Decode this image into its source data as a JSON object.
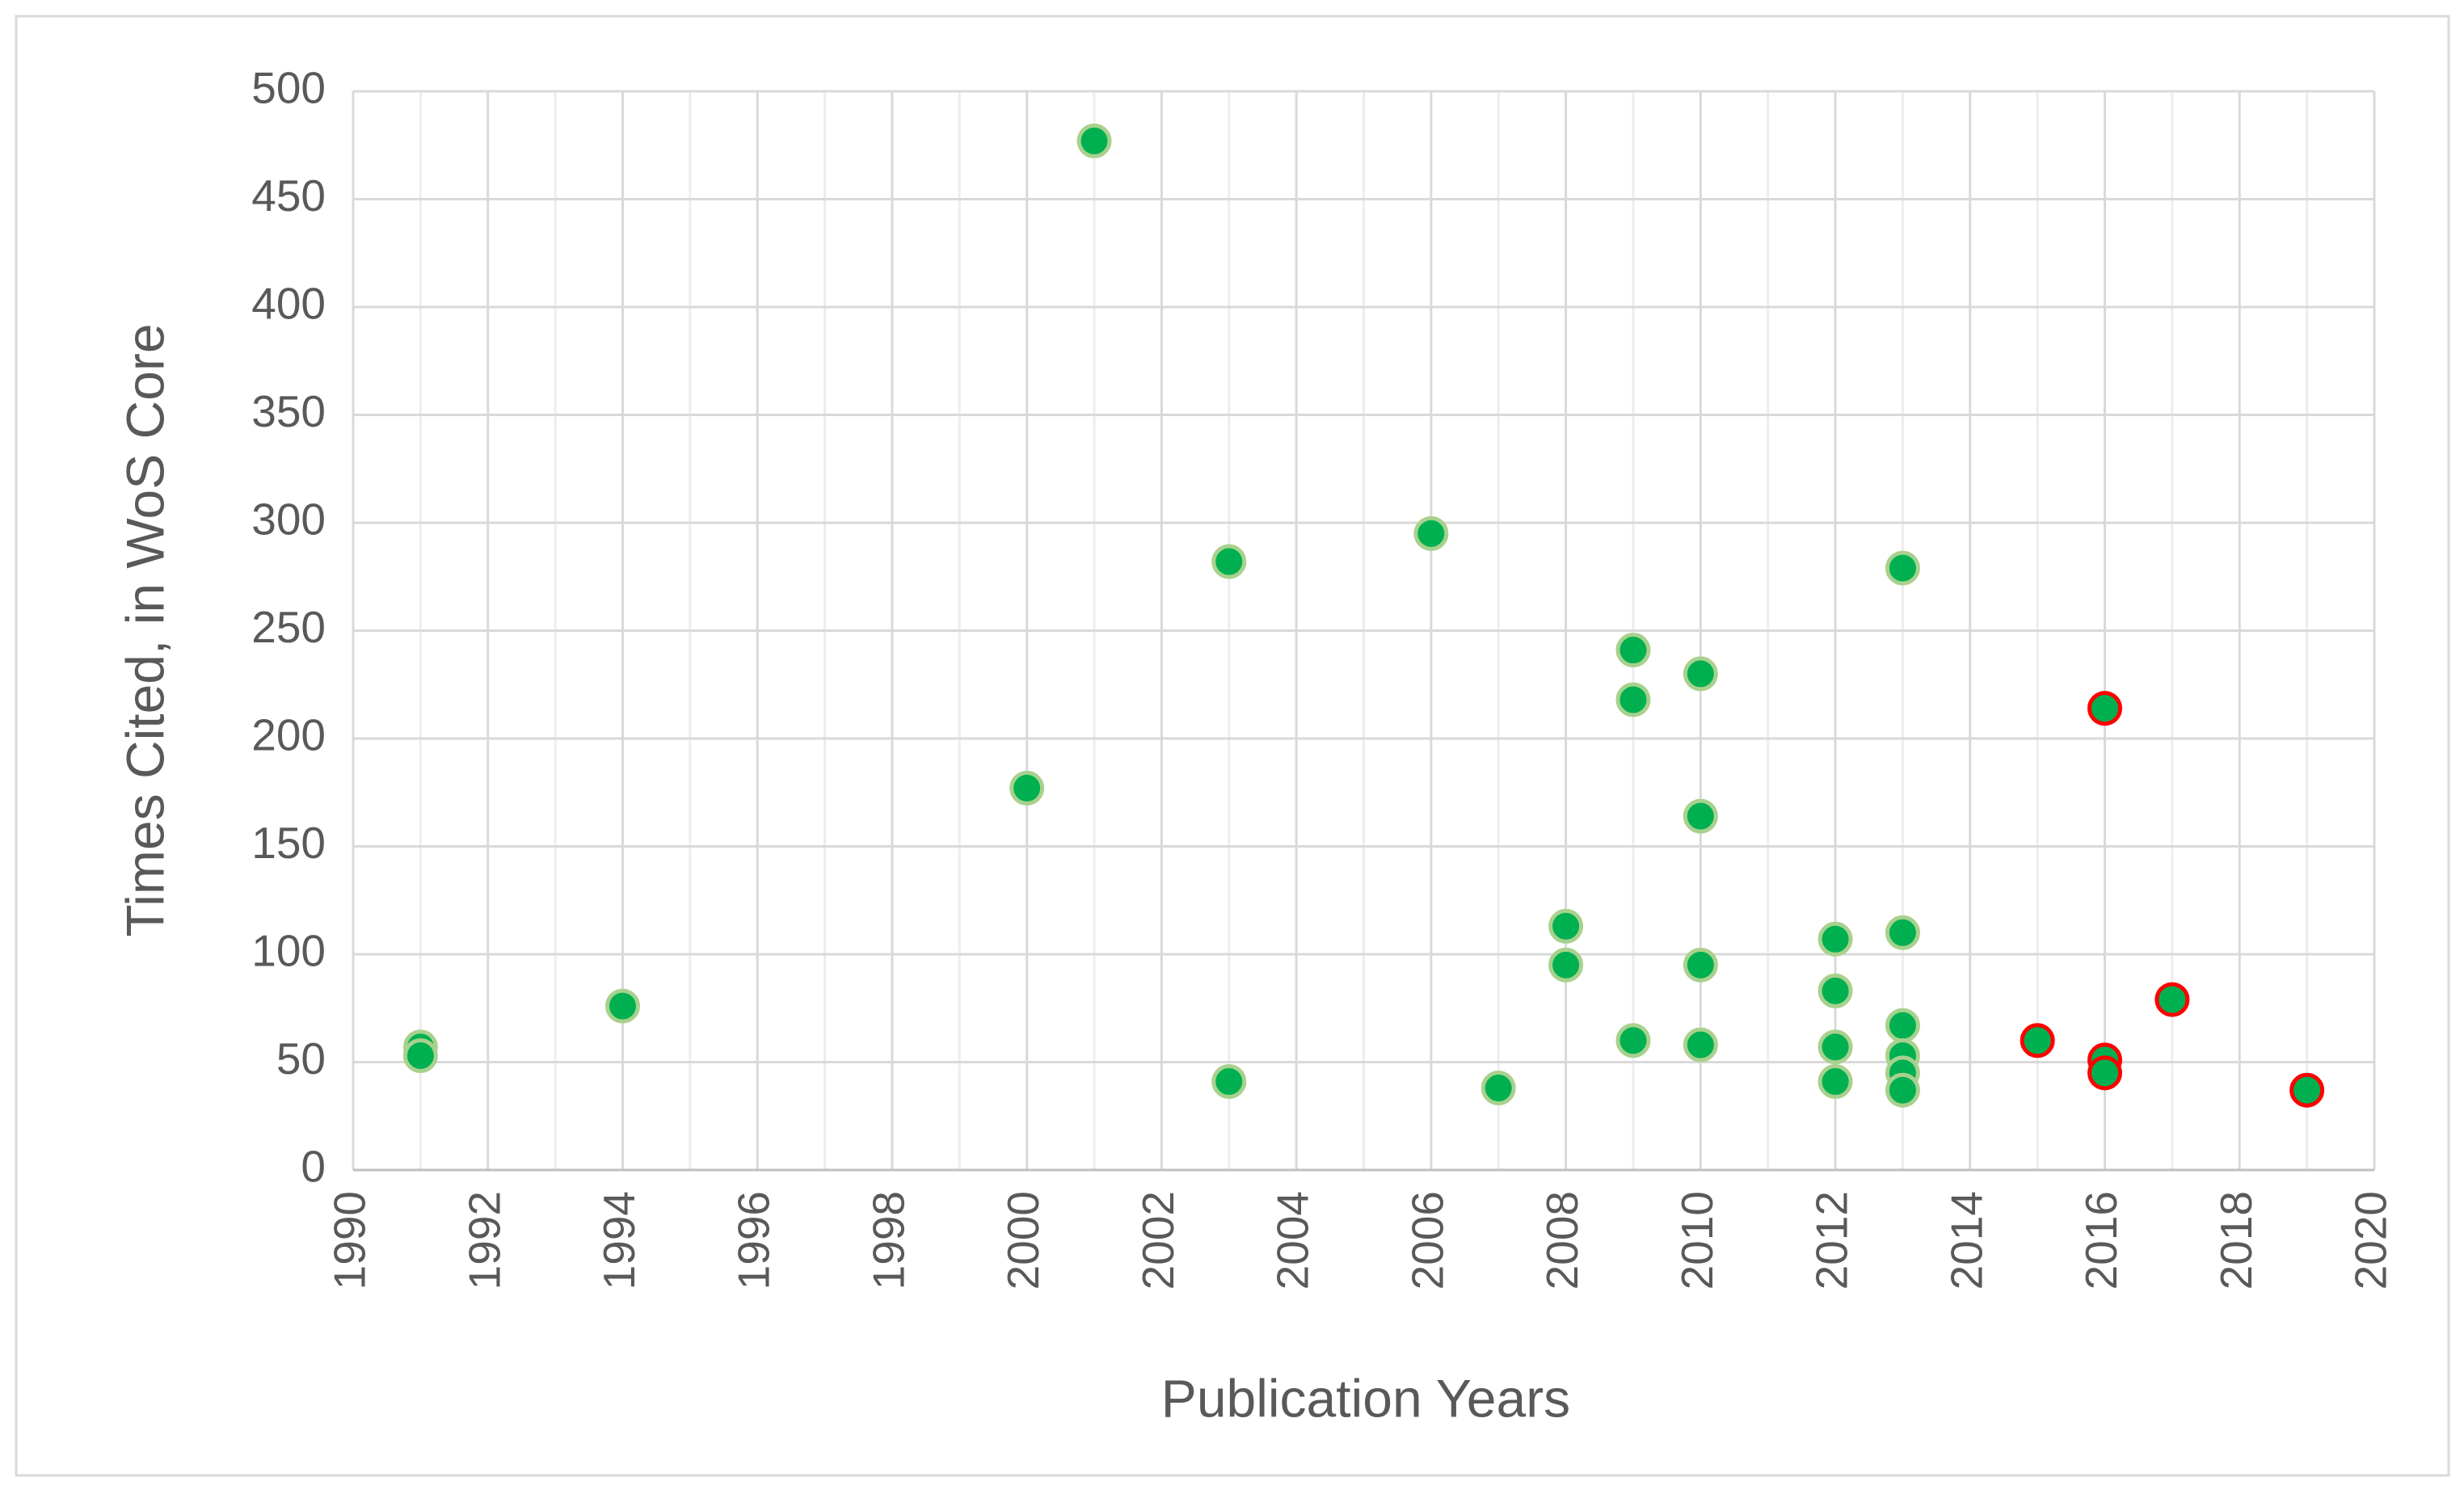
{
  "chart_data": {
    "type": "scatter",
    "xlabel": "Publication Years",
    "ylabel": "Times Cited, in WoS Core",
    "xlim": [
      1990,
      2020
    ],
    "xticks": [
      1990,
      1992,
      1994,
      1996,
      1998,
      2000,
      2002,
      2004,
      2006,
      2008,
      2010,
      2012,
      2014,
      2016,
      2018,
      2020
    ],
    "ylim": [
      0,
      500
    ],
    "yticks": [
      0,
      50,
      100,
      150,
      200,
      250,
      300,
      350,
      400,
      450,
      500
    ],
    "grid": true,
    "series": [
      {
        "color": "#00b050",
        "edgecolor": "#a9d18e",
        "x": [
          1991,
          1991,
          1994,
          2000,
          2001,
          2003,
          2003,
          2006,
          2007,
          2008,
          2008,
          2009,
          2009,
          2009,
          2010,
          2010,
          2010,
          2010,
          2012,
          2012,
          2012,
          2012,
          2013,
          2013,
          2013,
          2013,
          2013,
          2013
        ],
        "values": [
          57,
          53,
          76,
          177,
          477,
          282,
          41,
          295,
          38,
          113,
          95,
          241,
          218,
          60,
          230,
          164,
          95,
          58,
          107,
          83,
          57,
          41,
          279,
          110,
          67,
          53,
          45,
          37
        ]
      },
      {
        "color": "#00b050",
        "edgecolor": "#ff0000",
        "x": [
          2015,
          2016,
          2016,
          2016,
          2017,
          2019
        ],
        "values": [
          60,
          214,
          51,
          45,
          79,
          37
        ]
      }
    ]
  }
}
